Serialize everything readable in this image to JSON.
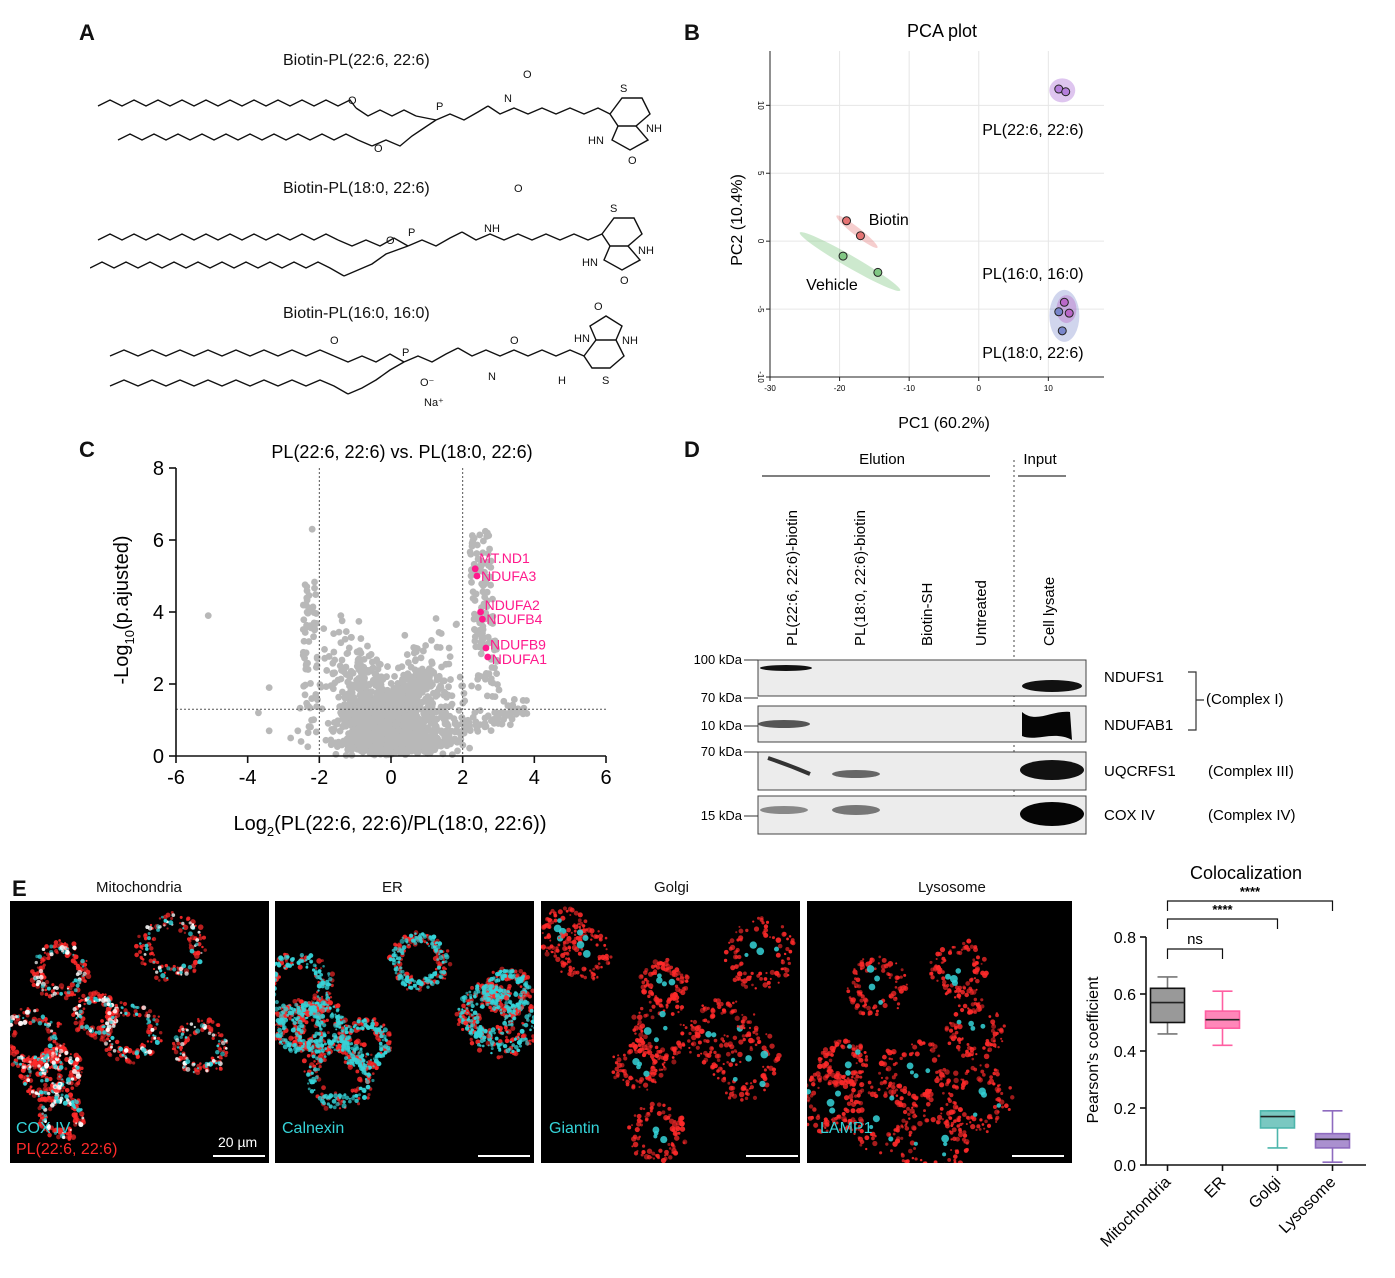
{
  "panels": {
    "A": "A",
    "B": "B",
    "C": "C",
    "D": "D",
    "E": "E"
  },
  "panel_a": {
    "structures": [
      {
        "name": "Biotin-PL(22:6, 22:6)"
      },
      {
        "name": "Biotin-PL(18:0, 22:6)"
      },
      {
        "name": "Biotin-PL(16:0, 16:0)"
      }
    ],
    "atoms": {
      "O": "O",
      "P": "P",
      "N": "N",
      "H": "H",
      "S": "S",
      "NH": "NH",
      "HN": "HN",
      "Na": "Na⁺",
      "Ominus": "O⁻"
    }
  },
  "pca": {
    "title": "PCA plot",
    "xlabel": "PC1 (60.2%)",
    "ylabel": "PC2 (10.4%)",
    "xticks": [
      "-30",
      "-20",
      "-10",
      "0",
      "10"
    ],
    "yticks": [
      "10",
      "5",
      "0",
      "-5",
      "-10"
    ],
    "group_labels": {
      "pl226": "PL(22:6, 22:6)",
      "biotin": "Biotin",
      "vehicle": "Vehicle",
      "pl160": "PL(16:0, 16:0)",
      "pl180": "PL(18:0, 22:6)"
    },
    "colors": {
      "pl226": "#b57edc",
      "biotin": "#e57373",
      "vehicle": "#81c784",
      "pl160": "#ba68c8",
      "pl180": "#7986cb"
    }
  },
  "chart_data": [
    {
      "type": "scatter",
      "title": "PCA plot",
      "xlabel": "PC1 (60.2%)",
      "ylabel": "PC2 (10.4%)",
      "xlim": [
        -30,
        18
      ],
      "ylim": [
        -10,
        14
      ],
      "series": [
        {
          "name": "PL(22:6, 22:6)",
          "x": [
            11.5,
            12.5
          ],
          "y": [
            11.2,
            11.0
          ]
        },
        {
          "name": "Biotin",
          "x": [
            -19,
            -17
          ],
          "y": [
            1.5,
            0.4
          ]
        },
        {
          "name": "Vehicle",
          "x": [
            -19.5,
            -14.5
          ],
          "y": [
            -1.1,
            -2.3
          ]
        },
        {
          "name": "PL(16:0, 16:0)",
          "x": [
            12.3,
            13.0
          ],
          "y": [
            -4.5,
            -5.3
          ]
        },
        {
          "name": "PL(18:0, 22:6)",
          "x": [
            11.5,
            12.0
          ],
          "y": [
            -5.2,
            -6.6
          ]
        }
      ]
    },
    {
      "type": "scatter",
      "title": "PL(22:6, 22:6) vs. PL(18:0, 22:6)",
      "xlabel": "Log₂(PL(22:6, 22:6)/PL(18:0, 22:6))",
      "ylabel": "-Log₁₀(p.ajusted)",
      "xlim": [
        -6,
        6
      ],
      "ylim": [
        0,
        8
      ],
      "xticks": [
        "-6",
        "-4",
        "-2",
        "0",
        "2",
        "4",
        "6"
      ],
      "yticks": [
        "0",
        "2",
        "4",
        "6",
        "8"
      ],
      "thresholds": {
        "x": [
          -2,
          2
        ],
        "y": 1.3
      },
      "labeled_points": [
        {
          "name": "MT.ND1",
          "x": 2.35,
          "y": 5.2
        },
        {
          "name": "NDUFA3",
          "x": 2.4,
          "y": 5.0
        },
        {
          "name": "NDUFA2",
          "x": 2.5,
          "y": 4.0
        },
        {
          "name": "NDUFB4",
          "x": 2.55,
          "y": 3.8
        },
        {
          "name": "NDUFB9",
          "x": 2.65,
          "y": 3.0
        },
        {
          "name": "NDUFA1",
          "x": 2.7,
          "y": 2.75
        }
      ]
    },
    {
      "type": "box",
      "title": "Colocalization",
      "ylabel": "Pearson's coefficient",
      "categories": [
        "Mitochondria",
        "ER",
        "Golgi",
        "Lysosome"
      ],
      "yticks": [
        "0.0",
        "0.2",
        "0.4",
        "0.6",
        "0.8"
      ],
      "ylim": [
        0,
        0.8
      ],
      "series": [
        {
          "name": "Mitochondria",
          "min": 0.46,
          "q1": 0.5,
          "median": 0.57,
          "q3": 0.62,
          "max": 0.66,
          "color": "#777777"
        },
        {
          "name": "ER",
          "min": 0.42,
          "q1": 0.48,
          "median": 0.51,
          "q3": 0.54,
          "max": 0.61,
          "color": "#ff5fa2"
        },
        {
          "name": "Golgi",
          "min": 0.06,
          "q1": 0.13,
          "median": 0.17,
          "q3": 0.19,
          "max": 0.19,
          "color": "#4db6ac"
        },
        {
          "name": "Lysosome",
          "min": 0.01,
          "q1": 0.06,
          "median": 0.09,
          "q3": 0.11,
          "max": 0.19,
          "color": "#8e6bbf"
        }
      ],
      "significance": [
        {
          "pair": [
            "Mitochondria",
            "ER"
          ],
          "label": "ns"
        },
        {
          "pair": [
            "Mitochondria",
            "Golgi"
          ],
          "label": "****"
        },
        {
          "pair": [
            "Mitochondria",
            "Lysosome"
          ],
          "label": "****"
        }
      ]
    }
  ],
  "volcano": {
    "title": "PL(22:6, 22:6) vs. PL(18:0, 22:6)",
    "xlabel_pre": "Log",
    "xlabel_sub": "2",
    "xlabel_post": "(PL(22:6, 22:6)/PL(18:0, 22:6))",
    "ylabel_pre": "-Log",
    "ylabel_sub": "10",
    "ylabel_post": "(p.ajusted)",
    "hit_color": "#ff1a8c"
  },
  "blot": {
    "elution": "Elution",
    "input": "Input",
    "lanes": [
      "PL(22:6, 22:6)-biotin",
      "PL(18:0, 22:6)-biotin",
      "Biotin-SH",
      "Untreated",
      "Cell lysate"
    ],
    "markers": [
      "100 kDa",
      "70 kDa",
      "10 kDa",
      "70 kDa",
      "15 kDa"
    ],
    "proteins": [
      "NDUFS1",
      "NDUFAB1",
      "UQCRFS1",
      "COX IV"
    ],
    "complexes": [
      "(Complex I)",
      "(Complex III)",
      "(Complex IV)"
    ]
  },
  "micro": {
    "titles": [
      "Mitochondria",
      "ER",
      "Golgi",
      "Lysosome"
    ],
    "markers": [
      "COX IV",
      "Calnexin",
      "Giantin",
      "LAMP1"
    ],
    "pl_label": "PL(22:6, 22:6)",
    "scale": "20 µm",
    "cyan": "#35d3d8",
    "red": "#ff2a2a"
  },
  "box": {
    "title": "Colocalization",
    "ylabel": "Pearson's coefficient"
  }
}
